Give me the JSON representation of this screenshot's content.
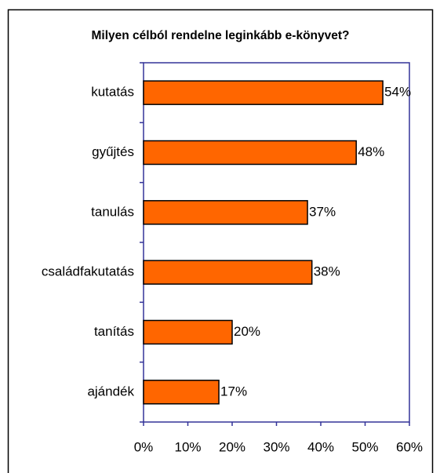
{
  "chart_data": {
    "type": "bar",
    "orientation": "horizontal",
    "title": "Milyen célból rendelne leginkább e-könyvet?",
    "categories": [
      "kutatás",
      "gyűjtés",
      "tanulás",
      "családfakutatás",
      "tanítás",
      "ajándék"
    ],
    "values": [
      54,
      48,
      37,
      38,
      20,
      17
    ],
    "value_labels": [
      "54%",
      "48%",
      "37%",
      "38%",
      "20%",
      "17%"
    ],
    "color": "#ff6600",
    "xlim": [
      0,
      60
    ],
    "xticks": [
      {
        "value": 0,
        "label": "0%"
      },
      {
        "value": 10,
        "label": "10%"
      },
      {
        "value": 20,
        "label": "20%"
      },
      {
        "value": 30,
        "label": "30%"
      },
      {
        "value": 40,
        "label": "40%"
      },
      {
        "value": 50,
        "label": "50%"
      },
      {
        "value": 60,
        "label": "60%"
      }
    ],
    "grid": false
  }
}
